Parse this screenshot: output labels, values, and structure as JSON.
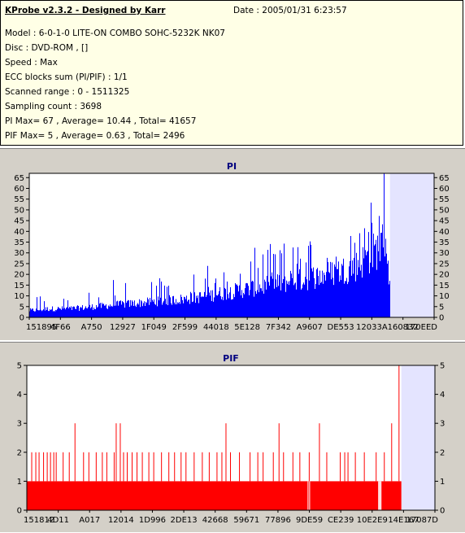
{
  "header": {
    "app_title": "KProbe v2.3.2 - Designed by Karr",
    "date": "Date : 2005/01/31 6:23:57"
  },
  "info": {
    "model": "Model : 6-0-1-0 LITE-ON COMBO SOHC-5232K NK07",
    "disc": "Disc : DVD-ROM ,  []",
    "speed": "Speed : Max",
    "ecc": "ECC blocks sum (PI/PIF) : 1/1",
    "range": "Scanned range : 0 - 1511325",
    "sampling": "Sampling count : 3698",
    "pi_stats": "PI Max= 67 , Average= 10.44 , Total= 41657",
    "pif_stats": "PIF Max= 5 , Average= 0.63 , Total= 2496"
  },
  "colors": {
    "pi_bars": "#0000ff",
    "pif_bars": "#ff0000",
    "plot_bg": "#ffffff",
    "unscanned_bg": "#e4e4ff",
    "title": "#00007f",
    "panel_bg": "#d4d0c8"
  },
  "chart_data": [
    {
      "type": "bar",
      "title": "PI",
      "ylim": [
        0,
        67
      ],
      "yticks": [
        0,
        5,
        10,
        15,
        20,
        25,
        30,
        35,
        40,
        45,
        50,
        55,
        60,
        65
      ],
      "x_tick_labels": [
        "151895",
        "4F66",
        "A750",
        "12927",
        "1F049",
        "2F599",
        "44018",
        "5E128",
        "7F342",
        "A9607",
        "DE553",
        "12033A",
        "160832",
        "170EED"
      ],
      "scanned_fraction": 0.8911,
      "envelope": {
        "x_fraction": [
          0.0,
          0.05,
          0.1,
          0.15,
          0.2,
          0.25,
          0.3,
          0.35,
          0.4,
          0.45,
          0.5,
          0.55,
          0.6,
          0.65,
          0.7,
          0.75,
          0.8,
          0.82,
          0.84,
          0.86,
          0.88,
          0.89
        ],
        "typical": [
          4,
          5,
          5,
          6,
          7,
          8,
          9,
          10,
          11,
          13,
          15,
          17,
          19,
          21,
          23,
          26,
          29,
          32,
          36,
          40,
          45,
          20
        ],
        "peak": [
          10,
          11,
          11,
          14,
          18,
          19,
          20,
          21,
          22,
          25,
          29,
          32,
          35,
          36,
          38,
          42,
          48,
          52,
          57,
          62,
          67,
          25
        ]
      }
    },
    {
      "type": "bar",
      "title": "PIF",
      "ylim": [
        0,
        5
      ],
      "yticks": [
        0,
        1,
        2,
        3,
        4,
        5
      ],
      "x_tick_labels": [
        "151812",
        "4D11",
        "A017",
        "12014",
        "1D996",
        "2DE13",
        "42668",
        "59671",
        "77896",
        "9DE59",
        "CE239",
        "10E2E9",
        "14E167",
        "17087D"
      ],
      "scanned_fraction": 0.9177,
      "baseline": 1,
      "spikes": [
        {
          "x": 0.012,
          "value": 2
        },
        {
          "x": 0.022,
          "value": 2
        },
        {
          "x": 0.03,
          "value": 2
        },
        {
          "x": 0.041,
          "value": 2
        },
        {
          "x": 0.05,
          "value": 2
        },
        {
          "x": 0.058,
          "value": 2
        },
        {
          "x": 0.066,
          "value": 2
        },
        {
          "x": 0.072,
          "value": 2
        },
        {
          "x": 0.089,
          "value": 2
        },
        {
          "x": 0.104,
          "value": 2
        },
        {
          "x": 0.118,
          "value": 3
        },
        {
          "x": 0.139,
          "value": 2
        },
        {
          "x": 0.152,
          "value": 2
        },
        {
          "x": 0.17,
          "value": 2
        },
        {
          "x": 0.185,
          "value": 2
        },
        {
          "x": 0.196,
          "value": 2
        },
        {
          "x": 0.214,
          "value": 2
        },
        {
          "x": 0.219,
          "value": 3
        },
        {
          "x": 0.229,
          "value": 3
        },
        {
          "x": 0.237,
          "value": 2
        },
        {
          "x": 0.246,
          "value": 2
        },
        {
          "x": 0.258,
          "value": 2
        },
        {
          "x": 0.27,
          "value": 2
        },
        {
          "x": 0.283,
          "value": 2
        },
        {
          "x": 0.299,
          "value": 2
        },
        {
          "x": 0.311,
          "value": 2
        },
        {
          "x": 0.33,
          "value": 2
        },
        {
          "x": 0.348,
          "value": 2
        },
        {
          "x": 0.362,
          "value": 2
        },
        {
          "x": 0.378,
          "value": 2
        },
        {
          "x": 0.39,
          "value": 2
        },
        {
          "x": 0.41,
          "value": 2
        },
        {
          "x": 0.43,
          "value": 2
        },
        {
          "x": 0.447,
          "value": 2
        },
        {
          "x": 0.466,
          "value": 2
        },
        {
          "x": 0.478,
          "value": 2
        },
        {
          "x": 0.488,
          "value": 3
        },
        {
          "x": 0.499,
          "value": 2
        },
        {
          "x": 0.521,
          "value": 2
        },
        {
          "x": 0.547,
          "value": 2
        },
        {
          "x": 0.566,
          "value": 2
        },
        {
          "x": 0.579,
          "value": 2
        },
        {
          "x": 0.604,
          "value": 2
        },
        {
          "x": 0.618,
          "value": 3
        },
        {
          "x": 0.629,
          "value": 2
        },
        {
          "x": 0.652,
          "value": 2
        },
        {
          "x": 0.669,
          "value": 2
        },
        {
          "x": 0.692,
          "value": 2
        },
        {
          "x": 0.717,
          "value": 3
        },
        {
          "x": 0.735,
          "value": 2
        },
        {
          "x": 0.768,
          "value": 2
        },
        {
          "x": 0.779,
          "value": 2
        },
        {
          "x": 0.787,
          "value": 2
        },
        {
          "x": 0.805,
          "value": 2
        },
        {
          "x": 0.827,
          "value": 2
        },
        {
          "x": 0.856,
          "value": 2
        },
        {
          "x": 0.876,
          "value": 2
        },
        {
          "x": 0.894,
          "value": 3
        },
        {
          "x": 0.912,
          "value": 5
        }
      ],
      "gaps": [
        0.689,
        0.693,
        0.862,
        0.864,
        0.866,
        0.868
      ]
    }
  ]
}
